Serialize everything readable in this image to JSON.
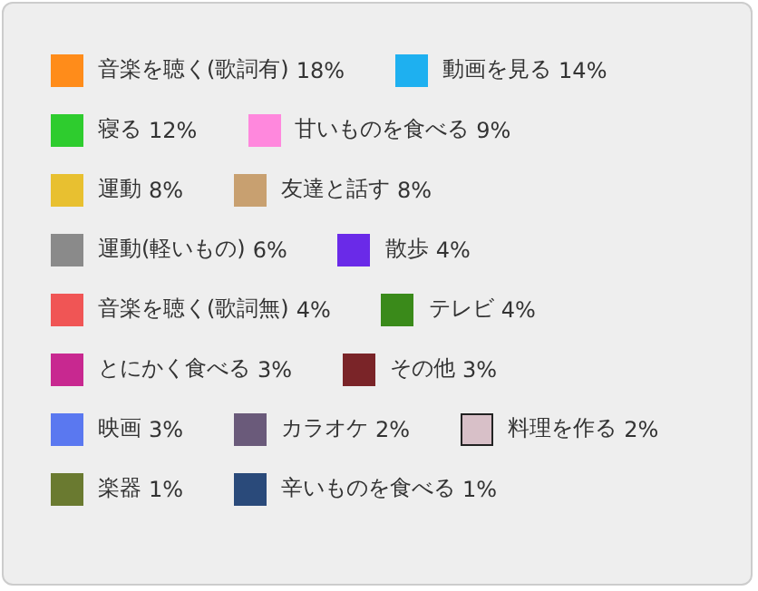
{
  "chart_data": {
    "type": "other",
    "categories": [
      "音楽を聴く(歌詞有)",
      "動画を見る",
      "寝る",
      "甘いものを食べる",
      "運動",
      "友達と話す",
      "運動(軽いもの)",
      "散歩",
      "音楽を聴く(歌詞無)",
      "テレビ",
      "とにかく食べる",
      "その他",
      "映画",
      "カラオケ",
      "料理を作る",
      "楽器",
      "辛いものを食べる"
    ],
    "values": [
      18,
      14,
      12,
      9,
      8,
      8,
      6,
      4,
      4,
      4,
      3,
      3,
      3,
      2,
      2,
      1,
      1
    ],
    "value_labels": [
      "18%",
      "14%",
      "12%",
      "9%",
      "8%",
      "8%",
      "6%",
      "4%",
      "4%",
      "4%",
      "3%",
      "3%",
      "3%",
      "2%",
      "2%",
      "1%",
      "1%"
    ],
    "colors": [
      "#ff8c1a",
      "#1eb0f0",
      "#2ecc2e",
      "#ff88dd",
      "#e8c030",
      "#c8a070",
      "#8a8a8a",
      "#6a2ae8",
      "#f05555",
      "#3a8a1a",
      "#c82890",
      "#7a2428",
      "#5a78f0",
      "#6a5a7a",
      "#d8c0c8",
      "#6a7a30",
      "#2a4a7a"
    ],
    "data_labels": true
  }
}
